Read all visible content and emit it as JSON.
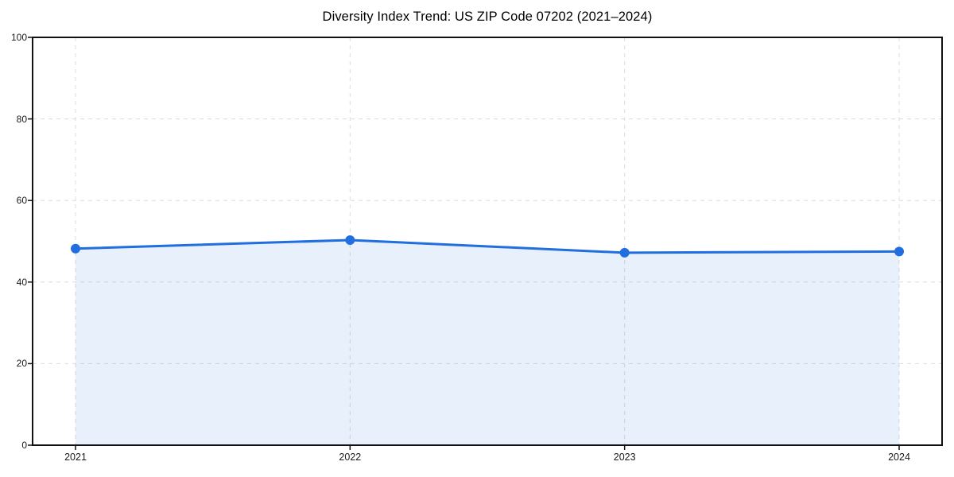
{
  "page": {
    "background_color": "#ffffff"
  },
  "chart_data": {
    "type": "area",
    "title": "Diversity Index Trend: US ZIP Code 07202 (2021–2024)",
    "x": [
      2021,
      2022,
      2023,
      2024
    ],
    "values": [
      48.2,
      50.3,
      47.2,
      47.5
    ],
    "xtick_labels": [
      "2021",
      "2022",
      "2023",
      "2024"
    ],
    "yticks": [
      0,
      20,
      40,
      60,
      80,
      100
    ],
    "ytick_labels": [
      "0",
      "20",
      "40",
      "60",
      "80",
      "100"
    ],
    "ylim": [
      0,
      100
    ],
    "grid": "dashed horizontal and vertical",
    "legend": "none",
    "line_color": "#216ee0",
    "fill_color": "rgba(33,110,224,0.10)",
    "grid_color": "#dcdcdc",
    "spine_color": "#111111",
    "marker": "circle"
  }
}
